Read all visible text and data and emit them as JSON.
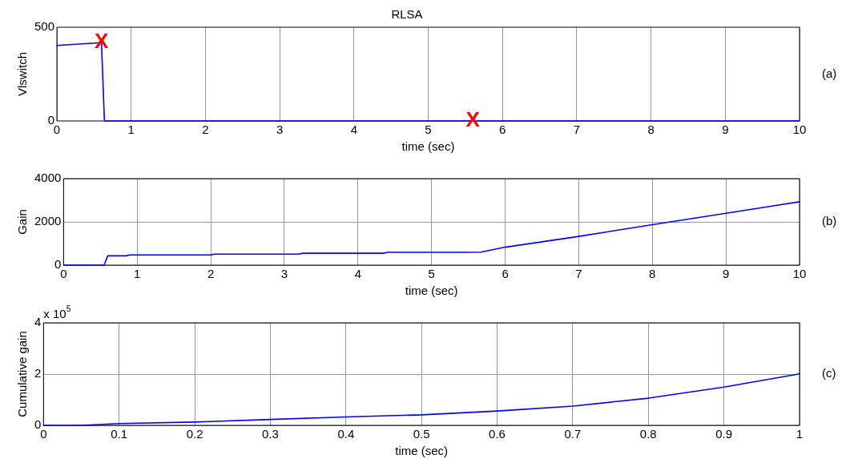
{
  "chart_data": [
    {
      "type": "line",
      "title": "RLSA",
      "xlabel": "time (sec)",
      "ylabel": "Vlswitch",
      "x": [
        0,
        0.6,
        0.64,
        10
      ],
      "series": [
        {
          "color": "#0000ff",
          "values": [
            403,
            418,
            0,
            0
          ]
        }
      ],
      "xlim": [
        0,
        10
      ],
      "xticks": [
        0,
        1,
        2,
        3,
        4,
        5,
        6,
        7,
        8,
        9,
        10
      ],
      "ylim": [
        0,
        500
      ],
      "yticks": [
        0,
        500
      ],
      "grid": "x",
      "annotations": [
        {
          "text": "X",
          "x": 0.6,
          "y": 418
        },
        {
          "text": "X",
          "x": 5.6,
          "y": 0
        },
        "(a)"
      ]
    },
    {
      "type": "line",
      "xlabel": "time (sec)",
      "ylabel": "Gain",
      "x": [
        0,
        0.55,
        0.6,
        0.85,
        0.9,
        2.0,
        2.05,
        3.2,
        3.25,
        4.35,
        4.4,
        5.48,
        5.67,
        6,
        7,
        8,
        9,
        10
      ],
      "series": [
        {
          "color": "#0000ff",
          "values": [
            0,
            0,
            430,
            430,
            470,
            470,
            510,
            510,
            550,
            550,
            590,
            590,
            600,
            830,
            1330,
            1870,
            2400,
            2930
          ]
        }
      ],
      "xlim": [
        0,
        10
      ],
      "xticks": [
        0,
        1,
        2,
        3,
        4,
        5,
        6,
        7,
        8,
        9,
        10
      ],
      "ylim": [
        0,
        4000
      ],
      "yticks": [
        0,
        2000,
        4000
      ],
      "grid": true,
      "annotations": [
        "(b)"
      ]
    },
    {
      "type": "line",
      "xlabel": "time (sec)",
      "ylabel": "Cumulative gain",
      "x": [
        0,
        0.05,
        0.1,
        0.2,
        0.3,
        0.4,
        0.5,
        0.6,
        0.7,
        0.8,
        0.9,
        1.0
      ],
      "series": [
        {
          "color": "#0000ff",
          "values": [
            0,
            0,
            0.07,
            0.13,
            0.23,
            0.33,
            0.41,
            0.56,
            0.75,
            1.06,
            1.49,
            2.01
          ]
        }
      ],
      "xlim": [
        0,
        1
      ],
      "xticks": [
        0,
        0.1,
        0.2,
        0.3,
        0.4,
        0.5,
        0.6,
        0.7,
        0.8,
        0.9,
        1
      ],
      "ylim": [
        0,
        4
      ],
      "yticks": [
        0,
        2,
        4
      ],
      "grid": true,
      "annotations": [
        "x 10$^{5}$",
        "(c)"
      ]
    }
  ]
}
